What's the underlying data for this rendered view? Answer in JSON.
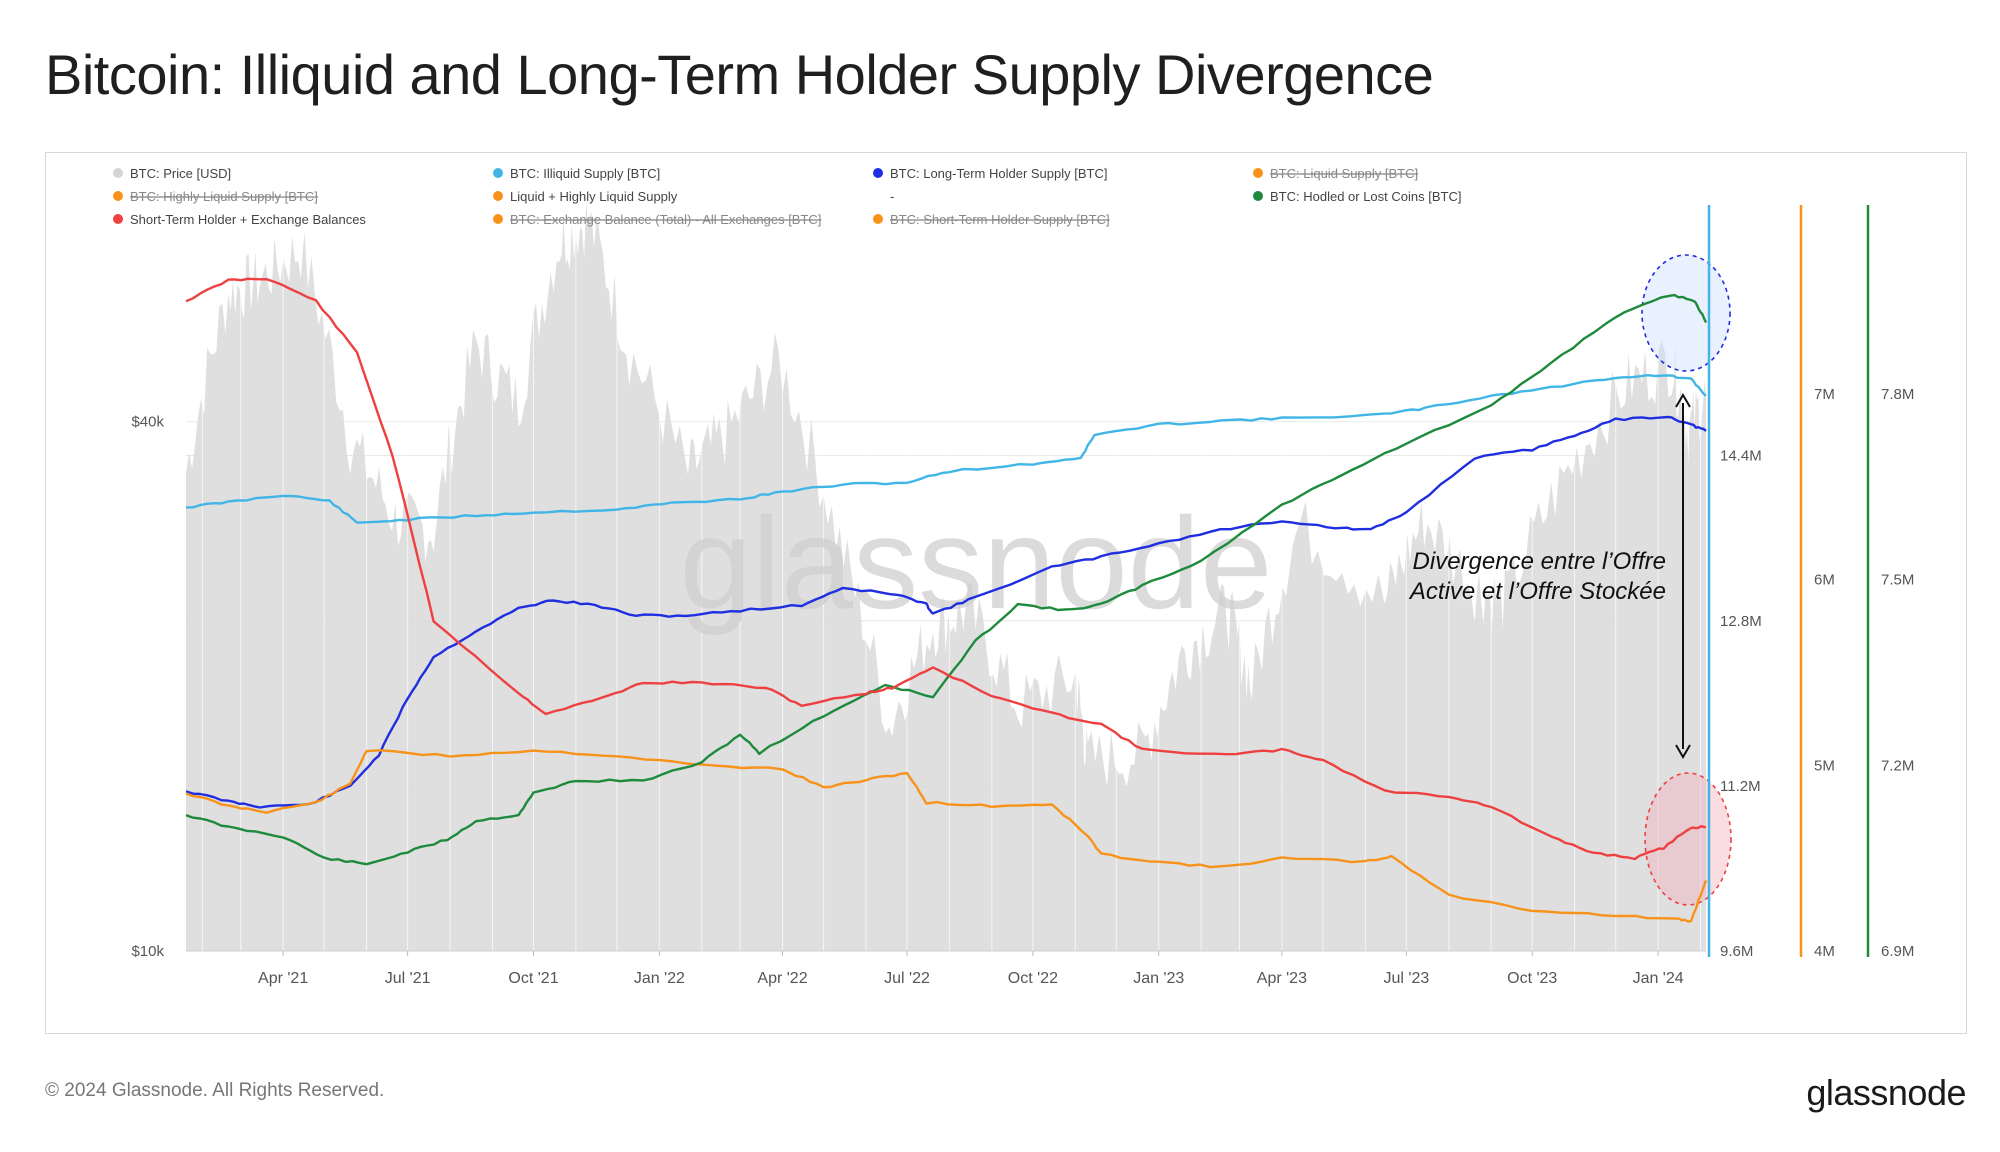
{
  "title": "Bitcoin: Illiquid and Long-Term Holder Supply Divergence",
  "footer": {
    "copyright": "© 2024 Glassnode. All Rights Reserved.",
    "logo": "glassnode"
  },
  "watermark": "glassnode",
  "chart_data": {
    "type": "line",
    "title": "Bitcoin: Illiquid and Long-Term Holder Supply Divergence",
    "x_range": [
      "2021-01-20",
      "2024-02-05"
    ],
    "x_ticks": [
      {
        "label": "Apr '21",
        "date": "2021-04-01"
      },
      {
        "label": "Jul '21",
        "date": "2021-07-01"
      },
      {
        "label": "Oct '21",
        "date": "2021-10-01"
      },
      {
        "label": "Jan '22",
        "date": "2022-01-01"
      },
      {
        "label": "Apr '22",
        "date": "2022-04-01"
      },
      {
        "label": "Jul '22",
        "date": "2022-07-01"
      },
      {
        "label": "Oct '22",
        "date": "2022-10-01"
      },
      {
        "label": "Jan '23",
        "date": "2023-01-01"
      },
      {
        "label": "Apr '23",
        "date": "2023-04-01"
      },
      {
        "label": "Jul '23",
        "date": "2023-07-01"
      },
      {
        "label": "Oct '23",
        "date": "2023-10-01"
      },
      {
        "label": "Jan '24",
        "date": "2024-01-01"
      }
    ],
    "axes": {
      "price": {
        "scale": "log",
        "range": [
          10000,
          70000
        ],
        "tick_labels": [
          "$40k",
          "$10k"
        ],
        "tick_values": [
          40000,
          10000
        ]
      },
      "supply": {
        "range": [
          9600000,
          16800000
        ],
        "tick_labels": [
          "14.4M",
          "12.8M",
          "11.2M",
          "9.6M"
        ],
        "tick_values": [
          14400000,
          12800000,
          11200000,
          9600000
        ],
        "color": "#41b6e6"
      },
      "liquid": {
        "range": [
          4000000,
          8000000
        ],
        "tick_labels": [
          "7M",
          "6M",
          "5M",
          "4M"
        ],
        "tick_values": [
          7000000,
          6000000,
          5000000,
          4000000
        ],
        "color": "#f7931a"
      },
      "hodled": {
        "range": [
          6900000,
          8100000
        ],
        "tick_labels": [
          "7.8M",
          "7.5M",
          "7.2M",
          "6.9M"
        ],
        "tick_values": [
          7800000,
          7500000,
          7200000,
          6900000
        ],
        "color": "#1d8a3c"
      }
    },
    "legend": [
      {
        "label": "BTC: Price [USD]",
        "color": "#d4d4d4",
        "disabled": false
      },
      {
        "label": "BTC: Illiquid Supply [BTC]",
        "color": "#41b6e6",
        "disabled": false
      },
      {
        "label": "BTC: Long-Term Holder Supply [BTC]",
        "color": "#1f2ee0",
        "disabled": false
      },
      {
        "label": "BTC: Liquid Supply [BTC]",
        "color": "#f7931a",
        "disabled": true
      },
      {
        "label": "BTC: Highly Liquid Supply [BTC]",
        "color": "#f7931a",
        "disabled": true
      },
      {
        "label": "Liquid + Highly Liquid Supply",
        "color": "#f7931a",
        "disabled": false
      },
      {
        "label": "-",
        "color": "",
        "disabled": false
      },
      {
        "label": "BTC: Hodled or Lost Coins [BTC]",
        "color": "#1d8a3c",
        "disabled": false
      },
      {
        "label": "Short-Term Holder + Exchange Balances",
        "color": "#ee4040",
        "disabled": false
      },
      {
        "label": "BTC: Exchange Balance (Total) - All Exchanges [BTC]",
        "color": "#f7931a",
        "disabled": true
      },
      {
        "label": "BTC: Short-Term Holder Supply [BTC]",
        "color": "#f7931a",
        "disabled": true
      }
    ],
    "series": [
      {
        "name": "BTC: Price [USD]",
        "axis": "price",
        "color": "#d9d9d9",
        "type": "area",
        "points": [
          [
            "2021-01-20",
            35000
          ],
          [
            "2021-02-20",
            56000
          ],
          [
            "2021-03-15",
            58000
          ],
          [
            "2021-04-14",
            63000
          ],
          [
            "2021-05-20",
            38000
          ],
          [
            "2021-06-22",
            31000
          ],
          [
            "2021-07-20",
            30000
          ],
          [
            "2021-08-20",
            49000
          ],
          [
            "2021-09-20",
            42000
          ],
          [
            "2021-10-20",
            64000
          ],
          [
            "2021-11-10",
            68000
          ],
          [
            "2021-12-10",
            48000
          ],
          [
            "2022-01-22",
            35000
          ],
          [
            "2022-02-20",
            39000
          ],
          [
            "2022-03-29",
            47000
          ],
          [
            "2022-05-10",
            30000
          ],
          [
            "2022-06-18",
            18000
          ],
          [
            "2022-07-20",
            23500
          ],
          [
            "2022-08-15",
            24500
          ],
          [
            "2022-09-20",
            19000
          ],
          [
            "2022-11-01",
            20500
          ],
          [
            "2022-11-10",
            16500
          ],
          [
            "2022-12-20",
            16800
          ],
          [
            "2023-01-20",
            22000
          ],
          [
            "2023-02-20",
            24500
          ],
          [
            "2023-03-10",
            20000
          ],
          [
            "2023-04-14",
            30500
          ],
          [
            "2023-06-15",
            25000
          ],
          [
            "2023-07-14",
            31000
          ],
          [
            "2023-08-20",
            26000
          ],
          [
            "2023-09-11",
            25000
          ],
          [
            "2023-10-24",
            34500
          ],
          [
            "2023-12-08",
            44000
          ],
          [
            "2024-01-11",
            47000
          ],
          [
            "2024-01-23",
            39000
          ],
          [
            "2024-02-05",
            43000
          ]
        ]
      },
      {
        "name": "BTC: Illiquid Supply [BTC]",
        "axis": "supply",
        "color": "#41b6e6",
        "points": [
          [
            "2021-01-20",
            13900000
          ],
          [
            "2021-02-20",
            13950000
          ],
          [
            "2021-04-01",
            14020000
          ],
          [
            "2021-05-05",
            13960000
          ],
          [
            "2021-05-25",
            13750000
          ],
          [
            "2021-07-01",
            13780000
          ],
          [
            "2021-08-20",
            13820000
          ],
          [
            "2021-10-01",
            13850000
          ],
          [
            "2021-12-01",
            13880000
          ],
          [
            "2022-01-10",
            13940000
          ],
          [
            "2022-03-01",
            13980000
          ],
          [
            "2022-04-01",
            14050000
          ],
          [
            "2022-05-15",
            14120000
          ],
          [
            "2022-07-01",
            14140000
          ],
          [
            "2022-08-01",
            14250000
          ],
          [
            "2022-10-01",
            14320000
          ],
          [
            "2022-11-05",
            14380000
          ],
          [
            "2022-11-15",
            14600000
          ],
          [
            "2023-01-01",
            14700000
          ],
          [
            "2023-02-15",
            14740000
          ],
          [
            "2023-04-01",
            14760000
          ],
          [
            "2023-06-15",
            14800000
          ],
          [
            "2023-07-15",
            14860000
          ],
          [
            "2023-09-01",
            14980000
          ],
          [
            "2023-10-15",
            15060000
          ],
          [
            "2023-12-01",
            15160000
          ],
          [
            "2024-01-05",
            15180000
          ],
          [
            "2024-01-25",
            15140000
          ],
          [
            "2024-02-05",
            14980000
          ]
        ]
      },
      {
        "name": "BTC: Long-Term Holder Supply [BTC]",
        "axis": "supply",
        "color": "#1f2ee0",
        "points": [
          [
            "2021-01-20",
            11150000
          ],
          [
            "2021-02-20",
            11050000
          ],
          [
            "2021-03-15",
            11000000
          ],
          [
            "2021-04-20",
            11020000
          ],
          [
            "2021-05-20",
            11200000
          ],
          [
            "2021-06-10",
            11500000
          ],
          [
            "2021-07-01",
            12050000
          ],
          [
            "2021-07-20",
            12450000
          ],
          [
            "2021-08-20",
            12700000
          ],
          [
            "2021-09-20",
            12920000
          ],
          [
            "2021-10-15",
            13000000
          ],
          [
            "2021-11-15",
            12950000
          ],
          [
            "2021-12-15",
            12850000
          ],
          [
            "2022-01-20",
            12850000
          ],
          [
            "2022-03-01",
            12900000
          ],
          [
            "2022-04-15",
            12950000
          ],
          [
            "2022-05-15",
            13120000
          ],
          [
            "2022-06-25",
            13050000
          ],
          [
            "2022-07-15",
            12960000
          ],
          [
            "2022-07-20",
            12870000
          ],
          [
            "2022-08-15",
            13000000
          ],
          [
            "2022-10-15",
            13320000
          ],
          [
            "2022-11-20",
            13420000
          ],
          [
            "2023-01-01",
            13550000
          ],
          [
            "2023-02-15",
            13680000
          ],
          [
            "2023-04-01",
            13770000
          ],
          [
            "2023-05-10",
            13700000
          ],
          [
            "2023-06-05",
            13680000
          ],
          [
            "2023-07-01",
            13850000
          ],
          [
            "2023-08-20",
            14380000
          ],
          [
            "2023-10-01",
            14460000
          ],
          [
            "2023-11-01",
            14600000
          ],
          [
            "2023-12-01",
            14750000
          ],
          [
            "2024-01-08",
            14780000
          ],
          [
            "2024-01-25",
            14700000
          ],
          [
            "2024-02-05",
            14640000
          ]
        ]
      },
      {
        "name": "Liquid + Highly Liquid Supply",
        "axis": "liquid",
        "color": "#f7931a",
        "points": [
          [
            "2021-01-20",
            4850000
          ],
          [
            "2021-02-20",
            4780000
          ],
          [
            "2021-03-20",
            4750000
          ],
          [
            "2021-04-25",
            4800000
          ],
          [
            "2021-05-20",
            4900000
          ],
          [
            "2021-06-01",
            5080000
          ],
          [
            "2021-08-01",
            5050000
          ],
          [
            "2021-10-01",
            5080000
          ],
          [
            "2021-12-01",
            5050000
          ],
          [
            "2022-02-01",
            5000000
          ],
          [
            "2022-04-01",
            4980000
          ],
          [
            "2022-05-01",
            4880000
          ],
          [
            "2022-06-01",
            4920000
          ],
          [
            "2022-07-01",
            4960000
          ],
          [
            "2022-07-15",
            4800000
          ],
          [
            "2022-09-01",
            4780000
          ],
          [
            "2022-10-15",
            4790000
          ],
          [
            "2022-11-10",
            4620000
          ],
          [
            "2022-11-20",
            4520000
          ],
          [
            "2023-01-01",
            4480000
          ],
          [
            "2023-02-15",
            4450000
          ],
          [
            "2023-04-01",
            4500000
          ],
          [
            "2023-06-01",
            4480000
          ],
          [
            "2023-06-20",
            4510000
          ],
          [
            "2023-08-01",
            4300000
          ],
          [
            "2023-10-01",
            4220000
          ],
          [
            "2023-12-01",
            4190000
          ],
          [
            "2024-01-15",
            4170000
          ],
          [
            "2024-01-25",
            4160000
          ],
          [
            "2024-02-05",
            4380000
          ]
        ]
      },
      {
        "name": "BTC: Hodled or Lost Coins [BTC]",
        "axis": "hodled",
        "color": "#1d8a3c",
        "points": [
          [
            "2021-01-20",
            7120000
          ],
          [
            "2021-02-20",
            7100000
          ],
          [
            "2021-04-01",
            7085000
          ],
          [
            "2021-05-01",
            7050000
          ],
          [
            "2021-06-01",
            7040000
          ],
          [
            "2021-07-01",
            7060000
          ],
          [
            "2021-07-30",
            7080000
          ],
          [
            "2021-08-20",
            7110000
          ],
          [
            "2021-09-20",
            7120000
          ],
          [
            "2021-10-01",
            7155000
          ],
          [
            "2021-11-01",
            7175000
          ],
          [
            "2021-12-20",
            7175000
          ],
          [
            "2022-02-01",
            7205000
          ],
          [
            "2022-03-01",
            7250000
          ],
          [
            "2022-03-15",
            7220000
          ],
          [
            "2022-05-01",
            7280000
          ],
          [
            "2022-06-15",
            7330000
          ],
          [
            "2022-07-20",
            7310000
          ],
          [
            "2022-08-20",
            7400000
          ],
          [
            "2022-09-20",
            7460000
          ],
          [
            "2022-10-25",
            7450000
          ],
          [
            "2022-11-20",
            7460000
          ],
          [
            "2022-12-20",
            7490000
          ],
          [
            "2023-02-01",
            7530000
          ],
          [
            "2023-04-01",
            7620000
          ],
          [
            "2023-05-15",
            7670000
          ],
          [
            "2023-07-01",
            7720000
          ],
          [
            "2023-09-01",
            7780000
          ],
          [
            "2023-10-15",
            7850000
          ],
          [
            "2023-12-01",
            7925000
          ],
          [
            "2024-01-10",
            7960000
          ],
          [
            "2024-01-28",
            7950000
          ],
          [
            "2024-02-05",
            7915000
          ]
        ]
      },
      {
        "name": "Short-Term Holder + Exchange Balances",
        "axis": "supply",
        "color": "#ee4040",
        "points": [
          [
            "2021-01-20",
            15900000
          ],
          [
            "2021-02-20",
            16100000
          ],
          [
            "2021-03-20",
            16120000
          ],
          [
            "2021-04-25",
            15900000
          ],
          [
            "2021-05-25",
            15400000
          ],
          [
            "2021-06-20",
            14400000
          ],
          [
            "2021-07-20",
            12800000
          ],
          [
            "2021-09-20",
            12100000
          ],
          [
            "2021-10-10",
            11900000
          ],
          [
            "2021-11-20",
            12050000
          ],
          [
            "2021-12-20",
            12200000
          ],
          [
            "2022-02-01",
            12200000
          ],
          [
            "2022-03-20",
            12150000
          ],
          [
            "2022-04-15",
            11980000
          ],
          [
            "2022-06-01",
            12100000
          ],
          [
            "2022-06-20",
            12150000
          ],
          [
            "2022-07-20",
            12350000
          ],
          [
            "2022-09-01",
            12070000
          ],
          [
            "2022-10-15",
            11900000
          ],
          [
            "2022-11-20",
            11800000
          ],
          [
            "2022-12-20",
            11550000
          ],
          [
            "2023-02-20",
            11500000
          ],
          [
            "2023-04-01",
            11550000
          ],
          [
            "2023-05-01",
            11450000
          ],
          [
            "2023-06-15",
            11150000
          ],
          [
            "2023-08-01",
            11100000
          ],
          [
            "2023-09-01",
            11000000
          ],
          [
            "2023-10-15",
            10700000
          ],
          [
            "2023-11-15",
            10550000
          ],
          [
            "2023-12-15",
            10500000
          ],
          [
            "2024-01-05",
            10600000
          ],
          [
            "2024-01-25",
            10800000
          ],
          [
            "2024-02-05",
            10800000
          ]
        ]
      }
    ],
    "annotations": [
      {
        "text": "Divergence entre l’Offre Active et l’Offre Stockée"
      }
    ]
  }
}
